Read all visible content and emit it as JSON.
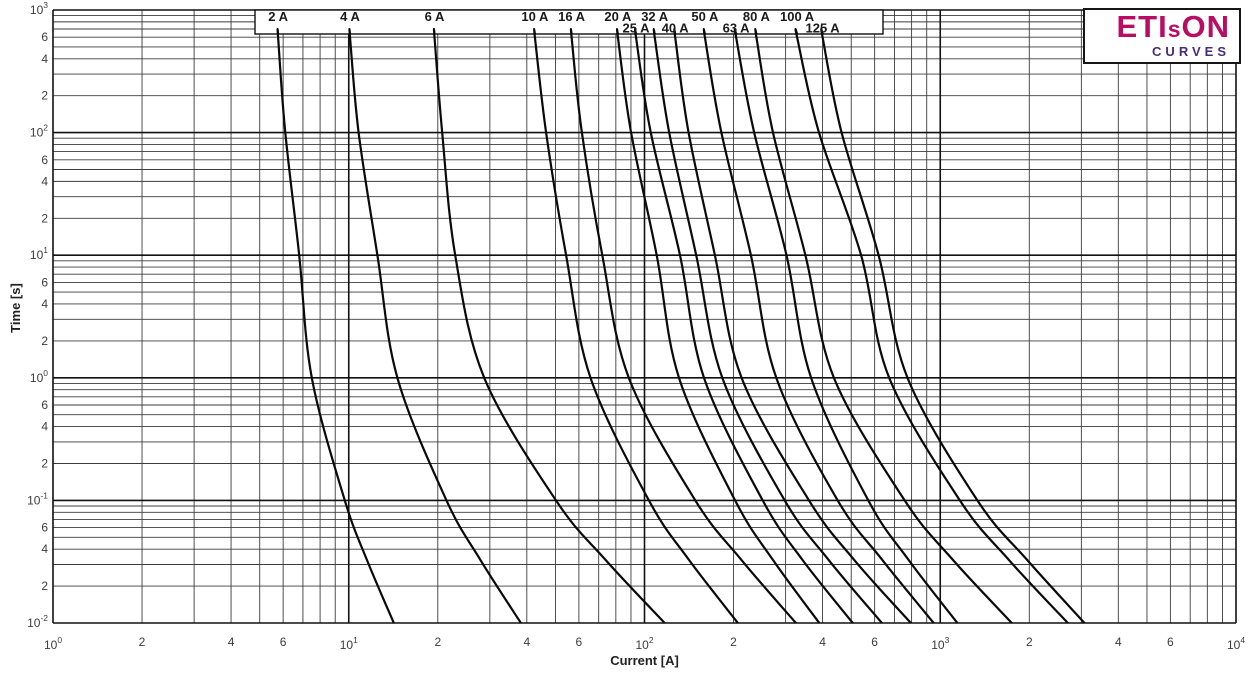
{
  "chart_data": {
    "type": "line",
    "xlabel": "Current [A]",
    "ylabel": "Time [s]",
    "x_scale": "log",
    "y_scale": "log",
    "x_range": [
      1,
      10000
    ],
    "y_range": [
      0.01,
      1000
    ],
    "x_decade_exponents": [
      0,
      1,
      2,
      3,
      4
    ],
    "y_decade_exponents": [
      3,
      2,
      1,
      0,
      -1,
      -2
    ],
    "x_labeled_minors": [
      2,
      4,
      6
    ],
    "y_labeled_minors": [
      2,
      4,
      6
    ],
    "grid": "log-log minor gridlines 2-9 in every decade",
    "legend_position": "top band inside plot",
    "curve_color": "#0a0a0a",
    "series": [
      {
        "name": "2 A",
        "rating_amps": 2,
        "label_row": 1,
        "points": [
          [
            5.77,
            600
          ],
          [
            6.1,
            100
          ],
          [
            6.8,
            10
          ],
          [
            7.5,
            1
          ],
          [
            9.7,
            0.1
          ],
          [
            11.5,
            0.033
          ],
          [
            14.2,
            0.01
          ]
        ]
      },
      {
        "name": "4 A",
        "rating_amps": 4,
        "label_row": 1,
        "points": [
          [
            10.1,
            600
          ],
          [
            10.8,
            100
          ],
          [
            12.5,
            10
          ],
          [
            14.6,
            1
          ],
          [
            21.4,
            0.1
          ],
          [
            27.8,
            0.033
          ],
          [
            38.2,
            0.01
          ]
        ]
      },
      {
        "name": "6 A",
        "rating_amps": 6,
        "label_row": 1,
        "points": [
          [
            19.5,
            600
          ],
          [
            20.7,
            100
          ],
          [
            22.9,
            10
          ],
          [
            28.7,
            1
          ],
          [
            50.2,
            0.1
          ],
          [
            73.6,
            0.033
          ],
          [
            117,
            0.01
          ]
        ]
      },
      {
        "name": "10 A",
        "rating_amps": 10,
        "label_row": 1,
        "points": [
          [
            42.6,
            600
          ],
          [
            46.5,
            100
          ],
          [
            54.3,
            10
          ],
          [
            65.7,
            1
          ],
          [
            103.5,
            0.1
          ],
          [
            141,
            0.033
          ],
          [
            207,
            0.01
          ]
        ]
      },
      {
        "name": "16 A",
        "rating_amps": 16,
        "label_row": 1,
        "points": [
          [
            56.7,
            600
          ],
          [
            61.4,
            100
          ],
          [
            72,
            10
          ],
          [
            88.5,
            1
          ],
          [
            148.5,
            0.1
          ],
          [
            212,
            0.033
          ],
          [
            325,
            0.01
          ]
        ]
      },
      {
        "name": "20 A",
        "rating_amps": 20,
        "label_row": 1,
        "points": [
          [
            81.3,
            600
          ],
          [
            90.1,
            100
          ],
          [
            110,
            10
          ],
          [
            130.8,
            1
          ],
          [
            202.5,
            0.1
          ],
          [
            271,
            0.033
          ],
          [
            390,
            0.01
          ]
        ]
      },
      {
        "name": "25 A",
        "rating_amps": 25,
        "label_row": 2,
        "points": [
          [
            93.6,
            600
          ],
          [
            105,
            100
          ],
          [
            131.8,
            10
          ],
          [
            158.9,
            1
          ],
          [
            251,
            0.1
          ],
          [
            341,
            0.033
          ],
          [
            506,
            0.01
          ]
        ]
      },
      {
        "name": "32 A",
        "rating_amps": 32,
        "label_row": 1,
        "points": [
          [
            108.3,
            600
          ],
          [
            121.2,
            100
          ],
          [
            149.6,
            10
          ],
          [
            183.3,
            1
          ],
          [
            298,
            0.1
          ],
          [
            418,
            0.033
          ],
          [
            635,
            0.01
          ]
        ]
      },
      {
        "name": "40 A",
        "rating_amps": 40,
        "label_row": 2,
        "points": [
          [
            127,
            600
          ],
          [
            141,
            100
          ],
          [
            173,
            10
          ],
          [
            213,
            1
          ],
          [
            360,
            0.1
          ],
          [
            510,
            0.033
          ],
          [
            795,
            0.01
          ]
        ]
      },
      {
        "name": "50 A",
        "rating_amps": 50,
        "label_row": 1,
        "points": [
          [
            160,
            600
          ],
          [
            182,
            100
          ],
          [
            229,
            10
          ],
          [
            279,
            1
          ],
          [
            450,
            0.1
          ],
          [
            635,
            0.033
          ],
          [
            950,
            0.01
          ]
        ]
      },
      {
        "name": "63 A",
        "rating_amps": 63,
        "label_row": 2,
        "points": [
          [
            204,
            600
          ],
          [
            235,
            100
          ],
          [
            302,
            10
          ],
          [
            366,
            1
          ],
          [
            571,
            0.1
          ],
          [
            779,
            0.033
          ],
          [
            1143,
            0.01
          ]
        ]
      },
      {
        "name": "80 A",
        "rating_amps": 80,
        "label_row": 1,
        "points": [
          [
            239,
            600
          ],
          [
            272,
            100
          ],
          [
            350,
            10
          ],
          [
            437,
            1
          ],
          [
            758,
            0.1
          ],
          [
            1100,
            0.033
          ],
          [
            1745,
            0.01
          ]
        ]
      },
      {
        "name": "100 A",
        "rating_amps": 100,
        "label_row": 1,
        "points": [
          [
            328,
            600
          ],
          [
            389,
            100
          ],
          [
            540,
            10
          ],
          [
            672,
            1
          ],
          [
            1165,
            0.1
          ],
          [
            1700,
            0.033
          ],
          [
            2700,
            0.01
          ]
        ]
      },
      {
        "name": "125 A",
        "rating_amps": 125,
        "label_row": 2,
        "points": [
          [
            400,
            600
          ],
          [
            464,
            100
          ],
          [
            619,
            10
          ],
          [
            775,
            1
          ],
          [
            1335,
            0.1
          ],
          [
            1960,
            0.033
          ],
          [
            3075,
            0.01
          ]
        ]
      }
    ]
  },
  "logo": {
    "wordmark_pre": "ETI",
    "wordmark_small": "s",
    "wordmark_post": "ON",
    "subtitle": "CURVES",
    "wordmark_color": "#b80d63",
    "subtitle_color": "#462c7d"
  }
}
